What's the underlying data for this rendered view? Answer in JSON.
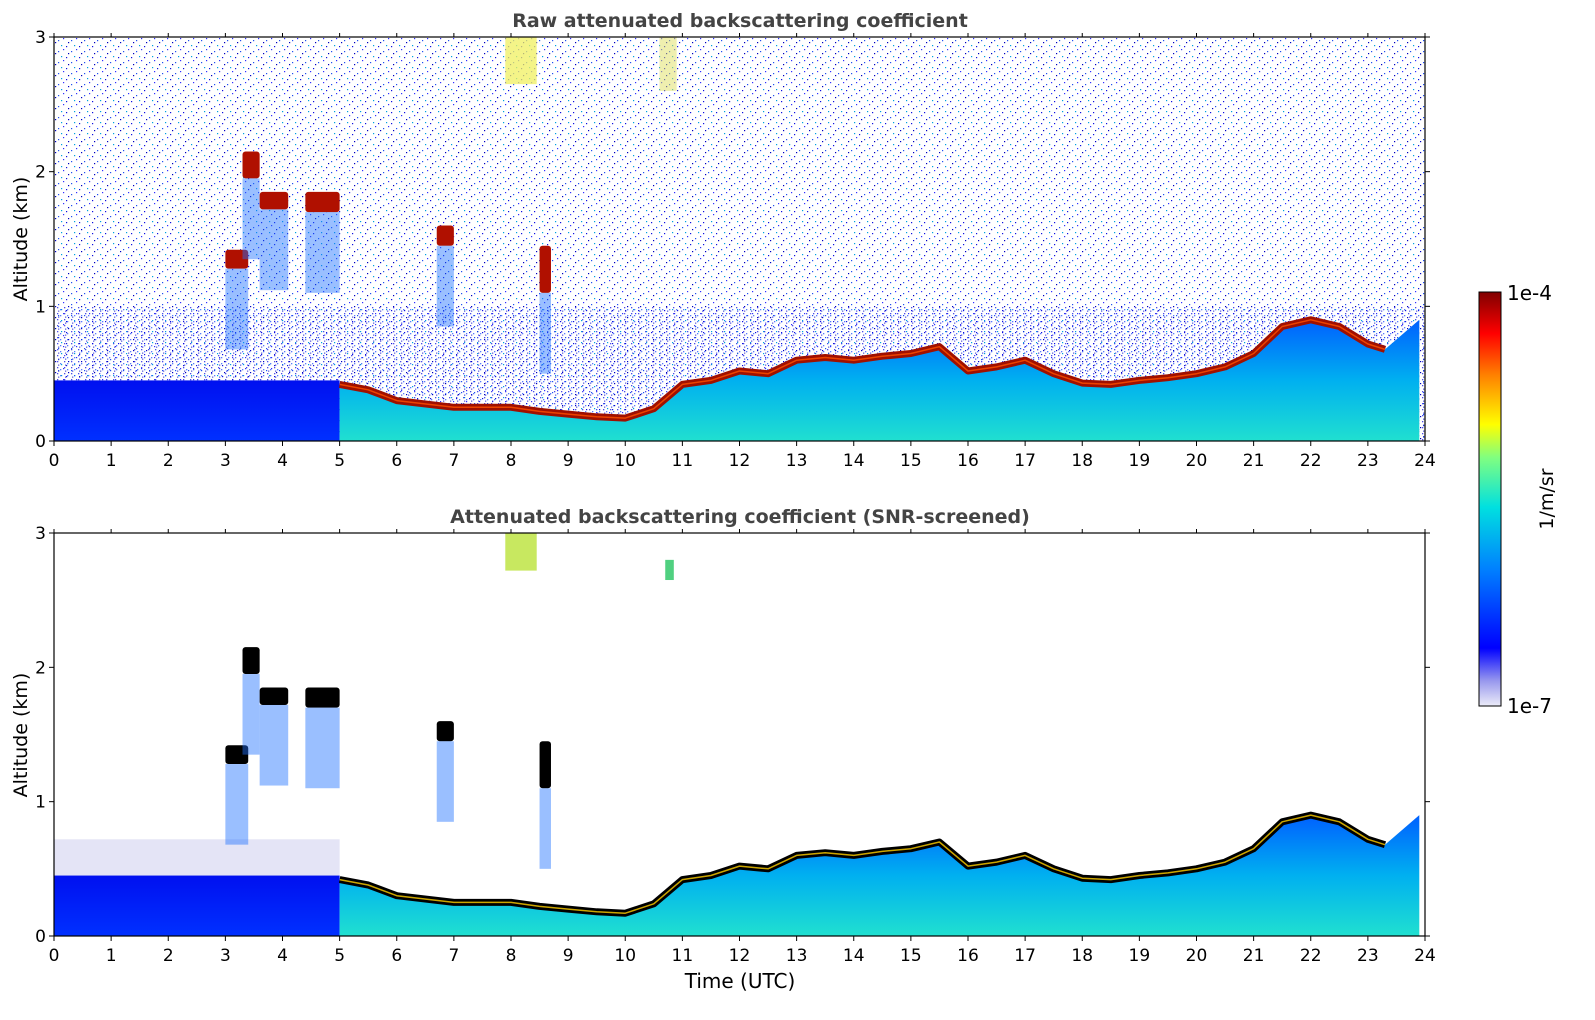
{
  "chart_data": [
    {
      "type": "heatmap",
      "title": "Raw attenuated backscattering coefficient",
      "xlabel": "",
      "ylabel": "Altitude (km)",
      "xlim": [
        0,
        24
      ],
      "ylim": [
        0,
        3
      ],
      "xticks": [
        "0",
        "1",
        "2",
        "3",
        "4",
        "5",
        "6",
        "7",
        "8",
        "9",
        "10",
        "11",
        "12",
        "13",
        "14",
        "15",
        "16",
        "17",
        "18",
        "19",
        "20",
        "21",
        "22",
        "23",
        "24"
      ],
      "yticks": [
        "0",
        "1",
        "2",
        "3"
      ],
      "screened": false,
      "boundary_layer_top_km": {
        "time": [
          5.0,
          5.5,
          6.0,
          7.0,
          8.0,
          8.5,
          9.0,
          9.5,
          10.0,
          10.5,
          11.0,
          11.5,
          12.0,
          12.5,
          13.0,
          13.5,
          14.0,
          14.5,
          15.0,
          15.5,
          16.0,
          16.5,
          17.0,
          17.5,
          18.0,
          18.5,
          19.0,
          19.5,
          20.0,
          20.5,
          21.0,
          21.5,
          22.0,
          22.5,
          23.0,
          23.3
        ],
        "altitude": [
          0.42,
          0.38,
          0.3,
          0.25,
          0.25,
          0.22,
          0.2,
          0.18,
          0.17,
          0.24,
          0.42,
          0.45,
          0.52,
          0.5,
          0.6,
          0.62,
          0.6,
          0.63,
          0.65,
          0.7,
          0.52,
          0.55,
          0.6,
          0.5,
          0.43,
          0.42,
          0.45,
          0.47,
          0.5,
          0.55,
          0.65,
          0.85,
          0.9,
          0.85,
          0.72,
          0.68
        ]
      },
      "cloud_layers_km": [
        {
          "t0": 3.0,
          "t1": 3.4,
          "z0": 1.28,
          "z1": 1.42
        },
        {
          "t0": 3.3,
          "t1": 3.6,
          "z0": 1.95,
          "z1": 2.15
        },
        {
          "t0": 3.6,
          "t1": 4.1,
          "z0": 1.72,
          "z1": 1.85
        },
        {
          "t0": 4.4,
          "t1": 5.0,
          "z0": 1.7,
          "z1": 1.85
        },
        {
          "t0": 6.7,
          "t1": 7.0,
          "z0": 1.45,
          "z1": 1.6
        },
        {
          "t0": 8.5,
          "t1": 8.7,
          "z0": 1.1,
          "z1": 1.45
        }
      ]
    },
    {
      "type": "heatmap",
      "title": "Attenuated backscattering coefficient (SNR-screened)",
      "xlabel": "Time (UTC)",
      "ylabel": "Altitude (km)",
      "xlim": [
        0,
        24
      ],
      "ylim": [
        0,
        3
      ],
      "xticks": [
        "0",
        "1",
        "2",
        "3",
        "4",
        "5",
        "6",
        "7",
        "8",
        "9",
        "10",
        "11",
        "12",
        "13",
        "14",
        "15",
        "16",
        "17",
        "18",
        "19",
        "20",
        "21",
        "22",
        "23",
        "24"
      ],
      "yticks": [
        "0",
        "1",
        "2",
        "3"
      ],
      "screened": true
    }
  ],
  "colorbar": {
    "label": "1/m/sr",
    "max_label": "1e-4",
    "min_label": "1e-7",
    "scale": "log",
    "colormap": [
      "#e6e6f5",
      "#0000ff",
      "#0080ff",
      "#00e0e0",
      "#80ff80",
      "#ffff00",
      "#ff8000",
      "#ff0000",
      "#800000"
    ]
  }
}
